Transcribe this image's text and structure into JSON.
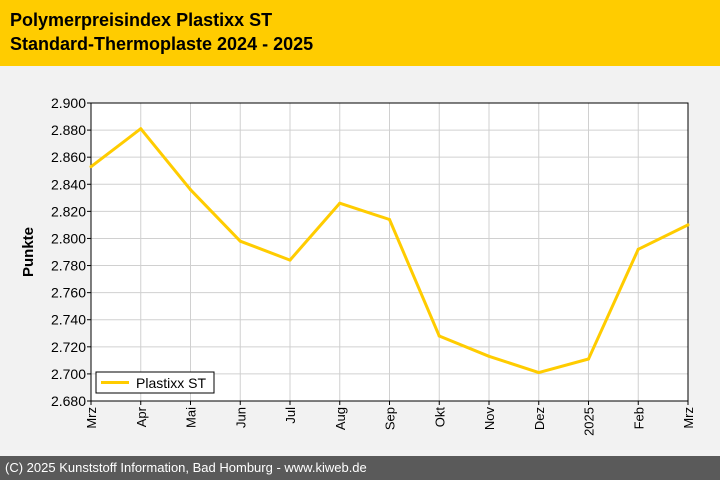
{
  "header": {
    "title": "Polymerpreisindex Plastixx ST",
    "subtitle": "Standard-Thermoplaste 2024 - 2025"
  },
  "footer": {
    "text": "(C) 2025 Kunststoff Information, Bad Homburg - www.kiweb.de"
  },
  "colors": {
    "header_bg": "#ffcc00",
    "series": "#ffcc00",
    "footer_bg": "#5a5a5a"
  },
  "chart_data": {
    "type": "line",
    "title": "Polymerpreisindex Plastixx ST",
    "subtitle": "Standard-Thermoplaste 2024 - 2025",
    "xlabel": "",
    "ylabel": "Punkte",
    "categories": [
      "Mrz",
      "Apr",
      "Mai",
      "Jun",
      "Jul",
      "Aug",
      "Sep",
      "Okt",
      "Nov",
      "Dez",
      "2025",
      "Feb",
      "Mrz"
    ],
    "series": [
      {
        "name": "Plastixx ST",
        "values": [
          2853,
          2881,
          2836,
          2798,
          2784,
          2826,
          2814,
          2728,
          2713,
          2701,
          2711,
          2792,
          2810
        ]
      }
    ],
    "ylim": [
      2680,
      2900
    ],
    "yticks": [
      2680,
      2700,
      2720,
      2740,
      2760,
      2780,
      2800,
      2820,
      2840,
      2860,
      2880,
      2900
    ],
    "ytick_labels": [
      "2.680",
      "2.700",
      "2.720",
      "2.740",
      "2.760",
      "2.780",
      "2.800",
      "2.820",
      "2.840",
      "2.860",
      "2.880",
      "2.900"
    ],
    "grid": true,
    "legend": "bottom-left"
  }
}
